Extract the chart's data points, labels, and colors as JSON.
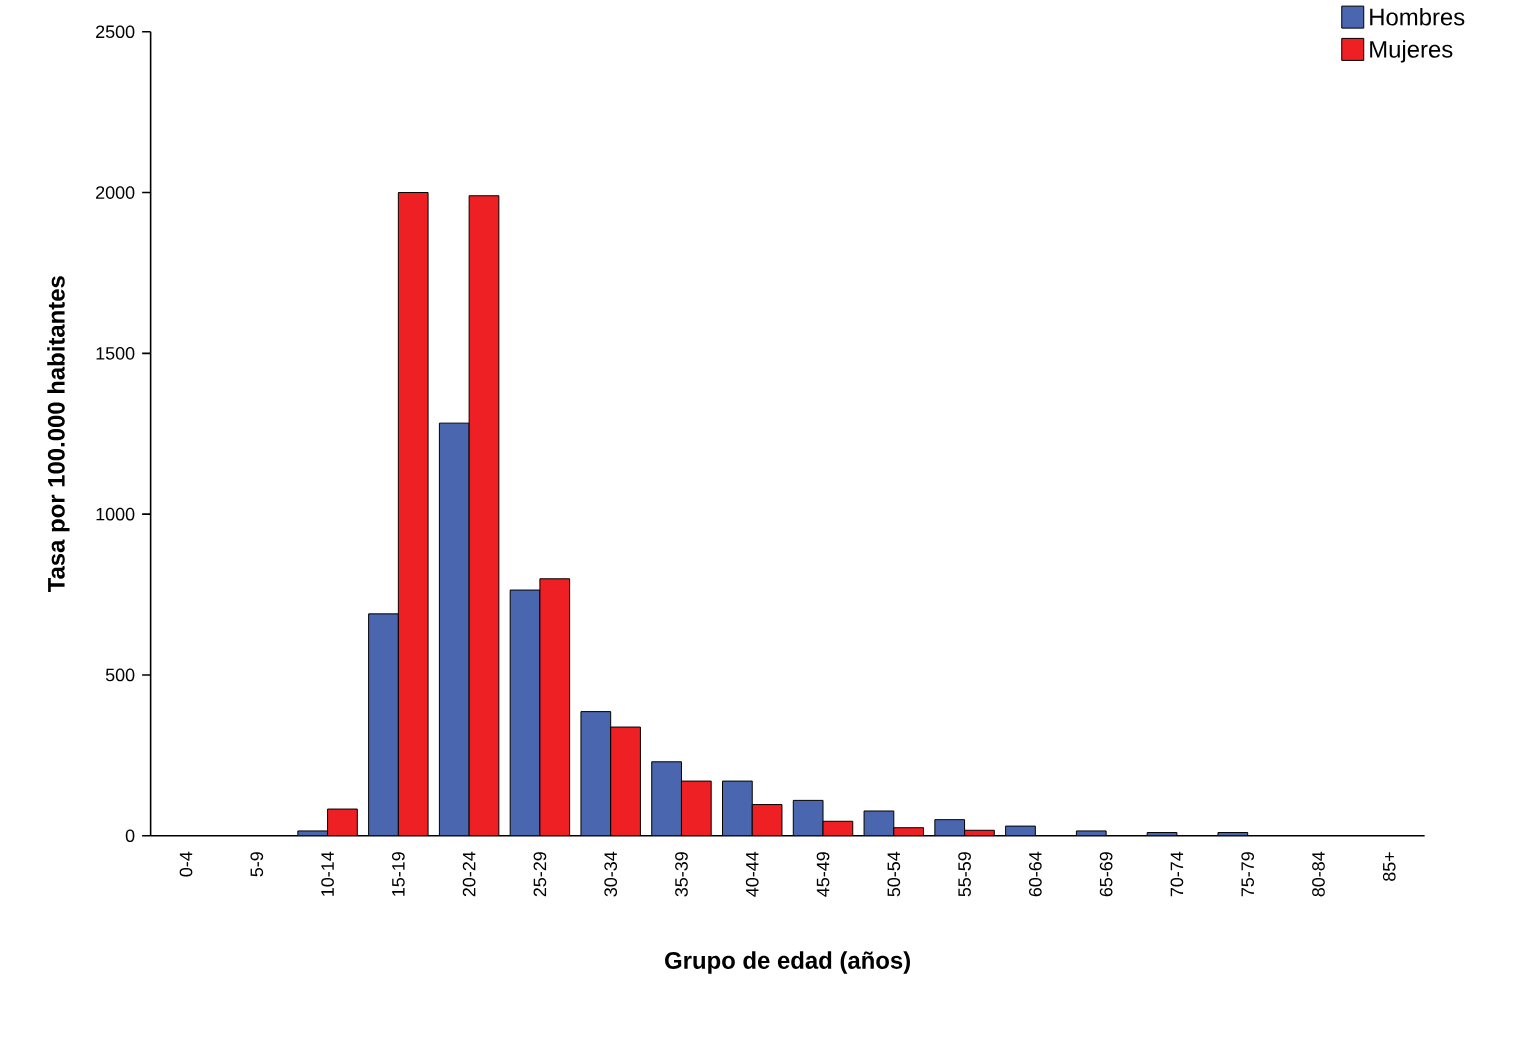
{
  "chart_data": {
    "type": "bar",
    "xlabel": "Grupo de  edad  (años)",
    "ylabel": "Tasa por 100.000 habitantes",
    "categories": [
      "0-4",
      "5-9",
      "10-14",
      "15-19",
      "20-24",
      "25-29",
      "30-34",
      "35-39",
      "40-44",
      "45-49",
      "50-54",
      "55-59",
      "60-64",
      "65-69",
      "70-74",
      "75-79",
      "80-84",
      "85+"
    ],
    "series": [
      {
        "name": "Hombres",
        "color": "#4a66ae",
        "values": [
          0,
          0,
          15,
          690,
          1283,
          764,
          386,
          230,
          170,
          110,
          77,
          50,
          30,
          15,
          10,
          10,
          0,
          0
        ]
      },
      {
        "name": "Mujeres",
        "color": "#ee2024",
        "values": [
          0,
          0,
          83,
          2000,
          1990,
          799,
          338,
          170,
          97,
          45,
          25,
          17,
          0,
          0,
          0,
          0,
          0,
          0
        ]
      }
    ],
    "ylim": [
      0,
      2500
    ],
    "yticks": [
      0,
      500,
      1000,
      1500,
      2000,
      2500
    ],
    "grid": false,
    "legend": "top right"
  }
}
